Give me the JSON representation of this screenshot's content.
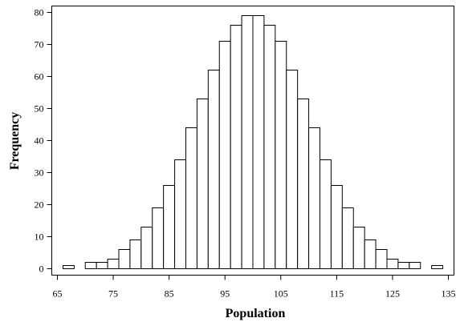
{
  "chart_data": {
    "type": "bar",
    "title": "",
    "xlabel": "Population",
    "ylabel": "Frequency",
    "xlim": [
      64,
      136
    ],
    "ylim": [
      -2,
      82
    ],
    "x_ticks": [
      65,
      75,
      85,
      95,
      105,
      115,
      125,
      135
    ],
    "y_ticks": [
      0,
      10,
      20,
      30,
      40,
      50,
      60,
      70,
      80
    ],
    "bin_width": 2,
    "grid": false,
    "legend": "none",
    "bar_fill": "#ffffff",
    "bar_stroke": "#000000",
    "bins": [
      {
        "x": 67,
        "value": 1
      },
      {
        "x": 69,
        "value": 0
      },
      {
        "x": 71,
        "value": 2
      },
      {
        "x": 73,
        "value": 2
      },
      {
        "x": 75,
        "value": 3
      },
      {
        "x": 77,
        "value": 6
      },
      {
        "x": 79,
        "value": 9
      },
      {
        "x": 81,
        "value": 13
      },
      {
        "x": 83,
        "value": 19
      },
      {
        "x": 85,
        "value": 26
      },
      {
        "x": 87,
        "value": 34
      },
      {
        "x": 89,
        "value": 44
      },
      {
        "x": 91,
        "value": 53
      },
      {
        "x": 93,
        "value": 62
      },
      {
        "x": 95,
        "value": 71
      },
      {
        "x": 97,
        "value": 76
      },
      {
        "x": 99,
        "value": 79
      },
      {
        "x": 101,
        "value": 79
      },
      {
        "x": 103,
        "value": 76
      },
      {
        "x": 105,
        "value": 71
      },
      {
        "x": 107,
        "value": 62
      },
      {
        "x": 109,
        "value": 53
      },
      {
        "x": 111,
        "value": 44
      },
      {
        "x": 113,
        "value": 34
      },
      {
        "x": 115,
        "value": 26
      },
      {
        "x": 117,
        "value": 19
      },
      {
        "x": 119,
        "value": 13
      },
      {
        "x": 121,
        "value": 9
      },
      {
        "x": 123,
        "value": 6
      },
      {
        "x": 125,
        "value": 3
      },
      {
        "x": 127,
        "value": 2
      },
      {
        "x": 129,
        "value": 2
      },
      {
        "x": 131,
        "value": 0
      },
      {
        "x": 133,
        "value": 1
      }
    ]
  }
}
